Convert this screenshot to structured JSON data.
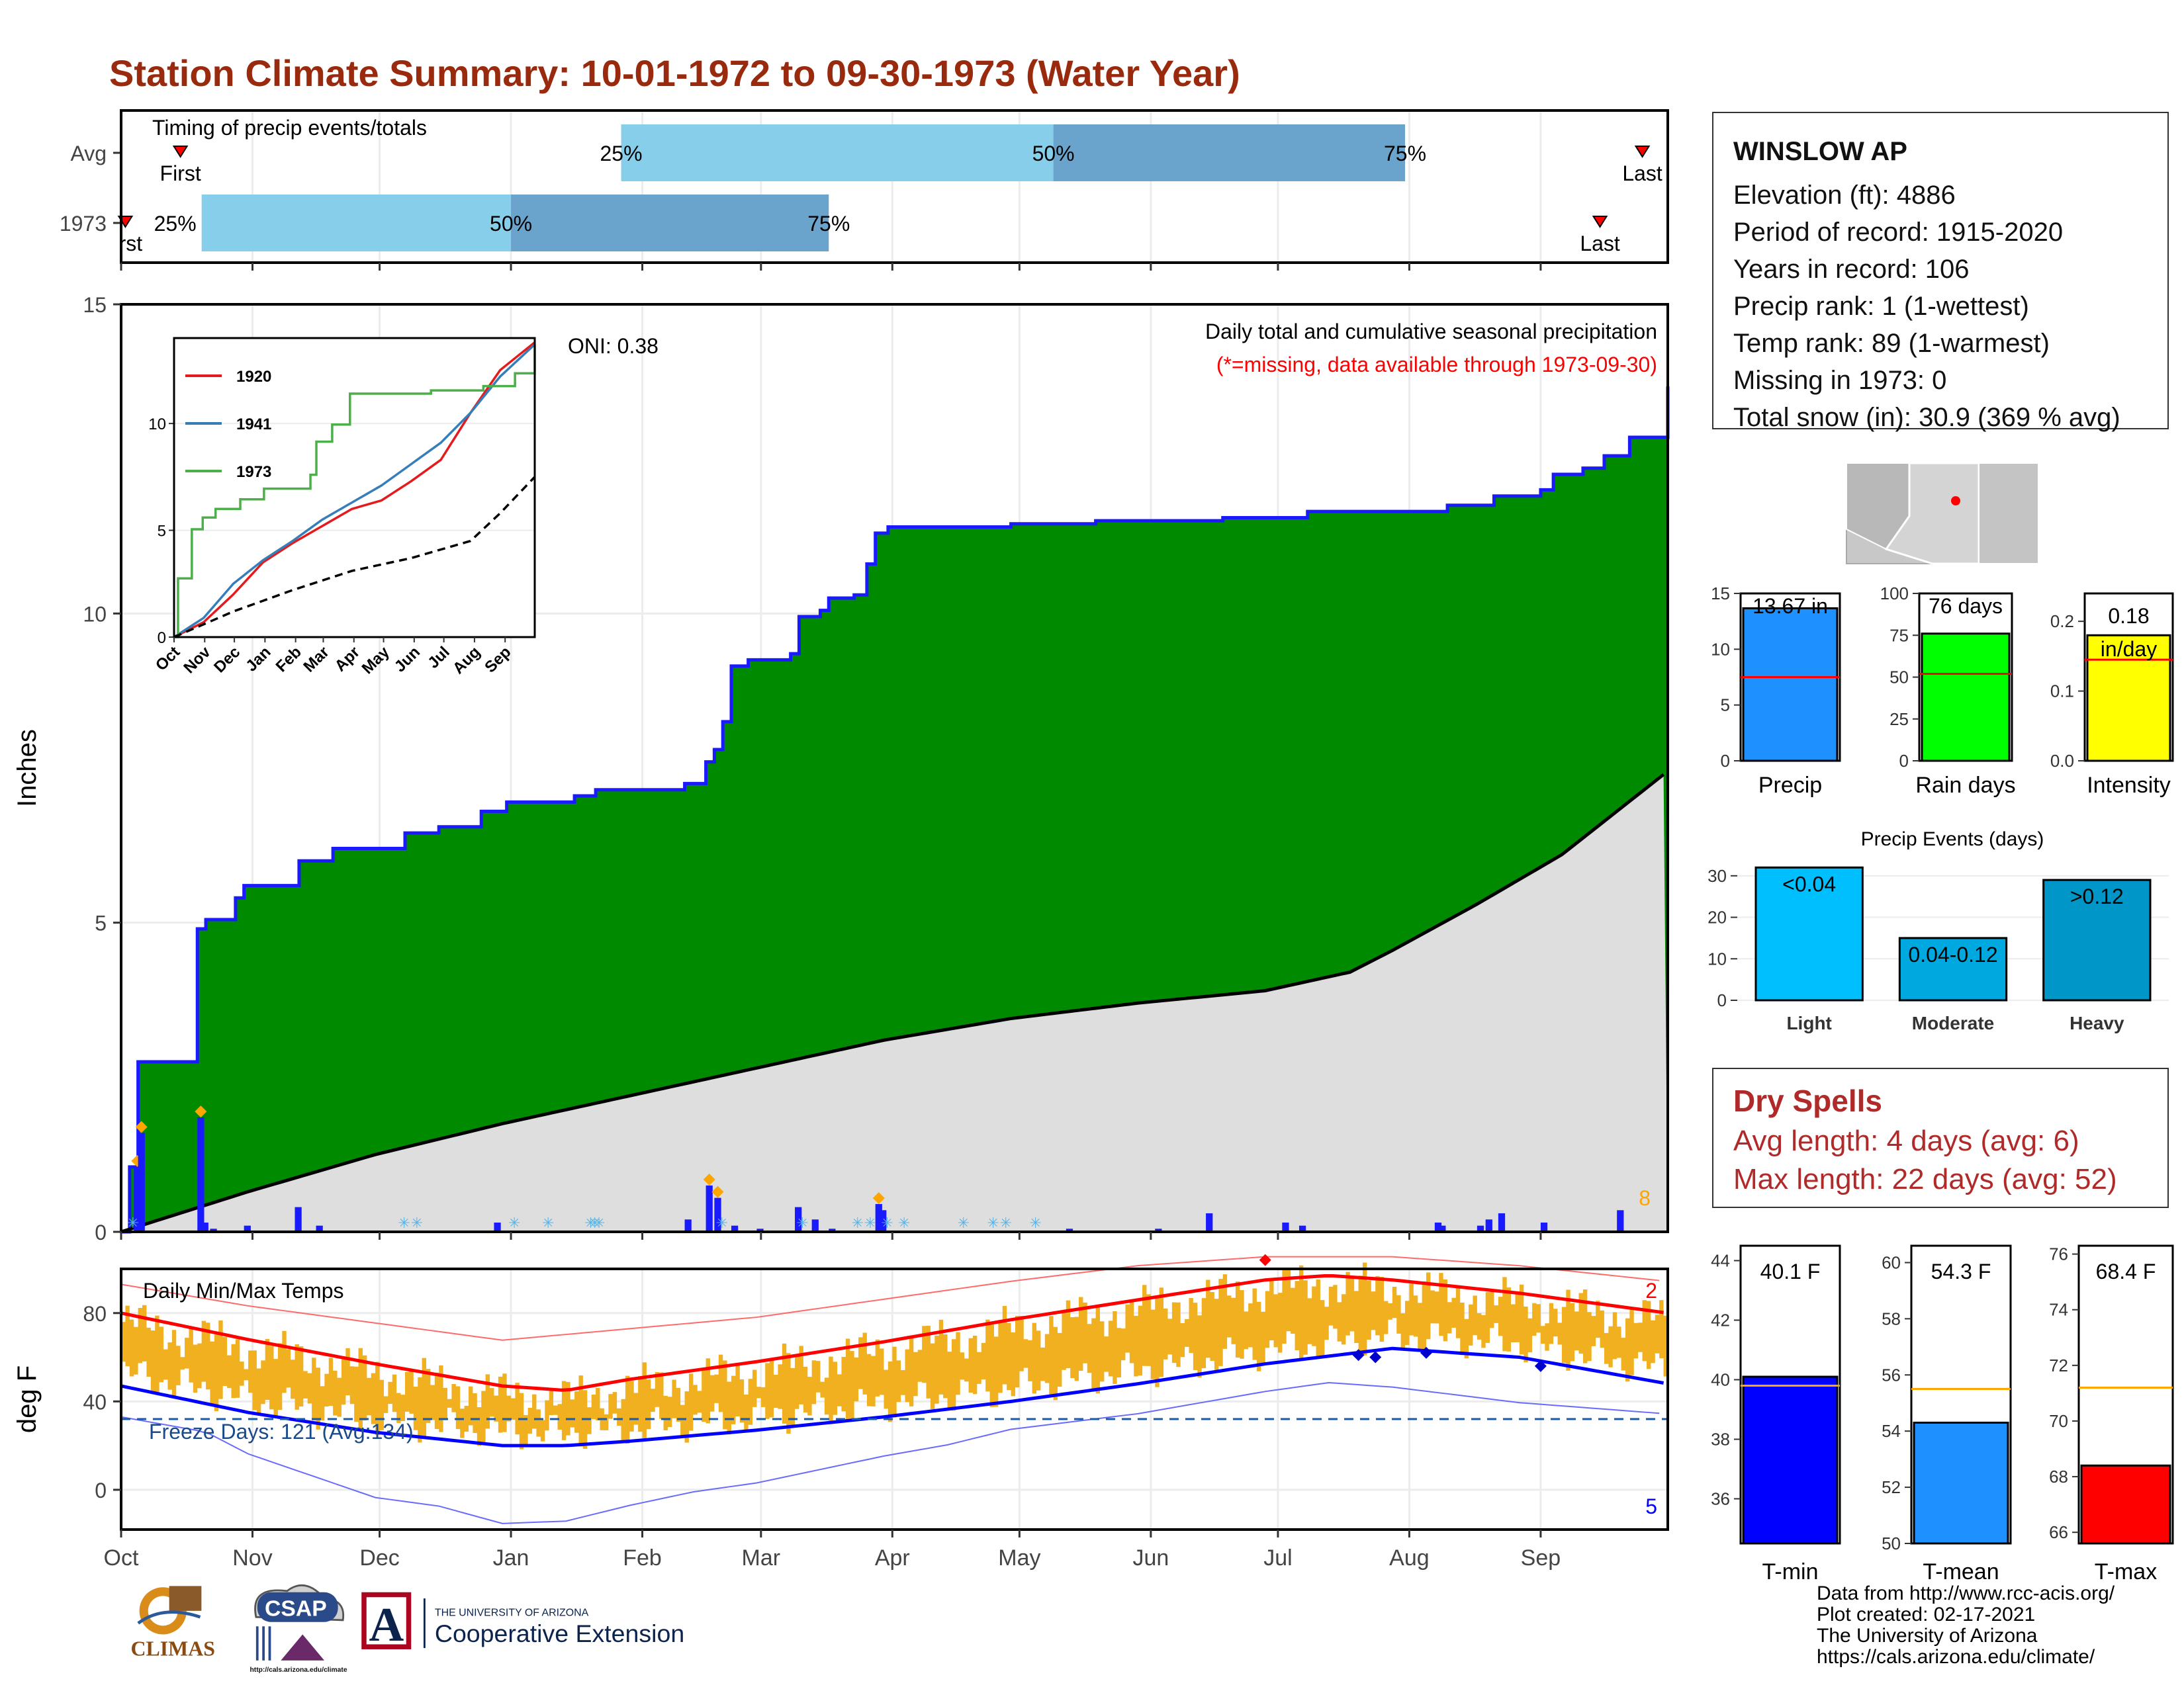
{
  "title": "Station Climate Summary: 10-01-1972 to 09-30-1973 (Water Year)",
  "station": {
    "name": "WINSLOW AP",
    "lines": [
      "Elevation (ft): 4886",
      "Period of record: 1915-2020",
      "Years in record: 106",
      "Precip rank: 1 (1-wettest)",
      "Temp rank: 89 (1-warmest)",
      "Missing in 1973: 0",
      "Total snow (in): 30.9 (369 % avg)"
    ]
  },
  "dry_spells": {
    "title": "Dry Spells",
    "avg": "Avg length: 4 days (avg: 6)",
    "max": "Max length: 22 days (avg: 52)"
  },
  "footer": [
    "Data from http://www.rcc-acis.org/",
    "Plot created: 02-17-2021",
    "The University of Arizona",
    "https://cals.arizona.edu/climate/"
  ],
  "logos": {
    "climas": "CLIMAS",
    "csap": "CSAP",
    "csap_url": "http://cals.arizona.edu/climate",
    "ua_line1": "THE UNIVERSITY OF ARIZONA",
    "ua_line2": "Cooperative Extension",
    "ua_letter": "A"
  },
  "colors": {
    "title": "#9a2a0e",
    "green": "#008a00",
    "blue_line": "#1a1aff",
    "grey_fill": "#dedede",
    "orange": "#f0b020",
    "red": "#ff0000",
    "light_blue": "#87ceeb",
    "mid_blue": "#6aa3cc"
  },
  "chart_data": [
    {
      "id": "timing",
      "type": "bar",
      "title": "Timing of precip events/totals",
      "rows": [
        {
          "label": "Avg",
          "first": "Oct 15",
          "p25": "Jan 27",
          "p50": "May 9",
          "p75": "Jul 31",
          "last": "Sep 25"
        },
        {
          "label": "1973",
          "first": "Oct 2",
          "p25": "Oct 20",
          "p50": "Jan 1",
          "p75": "Mar 17",
          "last": "Sep 15"
        }
      ],
      "row_labels": [
        "Avg",
        "1973"
      ],
      "pct_labels": [
        "25%",
        "50%",
        "75%"
      ],
      "first_label": "First",
      "first_label_cut": "rst",
      "last_label": "Last"
    },
    {
      "id": "precip",
      "type": "area",
      "title": "Daily total and cumulative seasonal precipitation",
      "subtitle": "(*=missing, data available through 1973-09-30)",
      "oni": "ONI: 0.38",
      "ylabel": "Inches",
      "ylim": [
        0,
        15
      ],
      "yticks": [
        0,
        5,
        10,
        15
      ],
      "xticks": [
        "Oct",
        "Nov",
        "Dec",
        "Jan",
        "Feb",
        "Mar",
        "Apr",
        "May",
        "Jun",
        "Jul",
        "Aug",
        "Sep"
      ],
      "count_label": "8",
      "cumulative_1973": [
        [
          0,
          0
        ],
        [
          2,
          1.05
        ],
        [
          4,
          2.75
        ],
        [
          17,
          2.75
        ],
        [
          18,
          4.9
        ],
        [
          20,
          5.05
        ],
        [
          27,
          5.4
        ],
        [
          29,
          5.6
        ],
        [
          40,
          5.6
        ],
        [
          42,
          6.0
        ],
        [
          50,
          6.2
        ],
        [
          66,
          6.2
        ],
        [
          67,
          6.45
        ],
        [
          75,
          6.55
        ],
        [
          85,
          6.8
        ],
        [
          91,
          6.95
        ],
        [
          107,
          7.05
        ],
        [
          112,
          7.15
        ],
        [
          133,
          7.25
        ],
        [
          138,
          7.6
        ],
        [
          140,
          7.8
        ],
        [
          142,
          8.25
        ],
        [
          144,
          9.15
        ],
        [
          148,
          9.25
        ],
        [
          158,
          9.35
        ],
        [
          160,
          9.95
        ],
        [
          165,
          10.05
        ],
        [
          167,
          10.25
        ],
        [
          173,
          10.3
        ],
        [
          176,
          10.8
        ],
        [
          178,
          11.3
        ],
        [
          181,
          11.4
        ],
        [
          210,
          11.45
        ],
        [
          230,
          11.5
        ],
        [
          260,
          11.55
        ],
        [
          280,
          11.65
        ],
        [
          306,
          11.65
        ],
        [
          313,
          11.75
        ],
        [
          324,
          11.9
        ],
        [
          335,
          12.0
        ],
        [
          338,
          12.25
        ],
        [
          345,
          12.35
        ],
        [
          350,
          12.55
        ],
        [
          356,
          12.85
        ],
        [
          365,
          13.67
        ]
      ],
      "avg_cumulative": [
        [
          0,
          0
        ],
        [
          30,
          0.65
        ],
        [
          60,
          1.25
        ],
        [
          90,
          1.75
        ],
        [
          120,
          2.2
        ],
        [
          150,
          2.65
        ],
        [
          180,
          3.1
        ],
        [
          210,
          3.45
        ],
        [
          240,
          3.7
        ],
        [
          270,
          3.9
        ],
        [
          290,
          4.2
        ],
        [
          300,
          4.55
        ],
        [
          320,
          5.3
        ],
        [
          340,
          6.1
        ],
        [
          365,
          7.45
        ]
      ],
      "daily_bars": [
        [
          3,
          1.05
        ],
        [
          4,
          1.6
        ],
        [
          18,
          1.85
        ],
        [
          19,
          0.15
        ],
        [
          21,
          0.05
        ],
        [
          29,
          0.1
        ],
        [
          41,
          0.4
        ],
        [
          46,
          0.1
        ],
        [
          88,
          0.15
        ],
        [
          133,
          0.2
        ],
        [
          138,
          0.75
        ],
        [
          140,
          0.55
        ],
        [
          144,
          0.1
        ],
        [
          150,
          0.05
        ],
        [
          159,
          0.4
        ],
        [
          163,
          0.2
        ],
        [
          167,
          0.05
        ],
        [
          178,
          0.45
        ],
        [
          179,
          0.35
        ],
        [
          223,
          0.05
        ],
        [
          244,
          0.05
        ],
        [
          256,
          0.3
        ],
        [
          274,
          0.15
        ],
        [
          278,
          0.1
        ],
        [
          310,
          0.15
        ],
        [
          311,
          0.1
        ],
        [
          320,
          0.1
        ],
        [
          322,
          0.2
        ],
        [
          325,
          0.3
        ],
        [
          335,
          0.15
        ],
        [
          353,
          0.35
        ]
      ],
      "snow_days": [
        2,
        66,
        69,
        92,
        100,
        110,
        111,
        112,
        141,
        160,
        173,
        176,
        180,
        184,
        198,
        205,
        208,
        215
      ],
      "inset": {
        "years": [
          "1920",
          "1941",
          "1973"
        ],
        "colors": [
          "#e41a1c",
          "#377eb8",
          "#4daf4a"
        ],
        "yticks": [
          0,
          5,
          10
        ],
        "xticks": [
          "Oct",
          "Nov",
          "Dec",
          "Jan",
          "Feb",
          "Mar",
          "Apr",
          "May",
          "Jun",
          "Jul",
          "Aug",
          "Sep"
        ],
        "ylim": [
          0,
          14
        ],
        "series": [
          {
            "name": "1920",
            "points": [
              [
                0,
                0
              ],
              [
                30,
                0.7
              ],
              [
                60,
                2
              ],
              [
                90,
                3.5
              ],
              [
                120,
                4.4
              ],
              [
                150,
                5.2
              ],
              [
                180,
                6
              ],
              [
                210,
                6.4
              ],
              [
                240,
                7.3
              ],
              [
                270,
                8.3
              ],
              [
                300,
                10.5
              ],
              [
                330,
                12.5
              ],
              [
                365,
                13.8
              ]
            ]
          },
          {
            "name": "1941",
            "points": [
              [
                0,
                0
              ],
              [
                30,
                0.9
              ],
              [
                60,
                2.5
              ],
              [
                90,
                3.6
              ],
              [
                120,
                4.5
              ],
              [
                150,
                5.5
              ],
              [
                180,
                6.3
              ],
              [
                210,
                7.1
              ],
              [
                240,
                8.1
              ],
              [
                270,
                9.1
              ],
              [
                300,
                10.5
              ],
              [
                330,
                12.2
              ],
              [
                365,
                13.7
              ]
            ]
          },
          {
            "name": "1973",
            "points": [
              [
                0,
                0
              ],
              [
                4,
                2.75
              ],
              [
                18,
                5.05
              ],
              [
                29,
                5.6
              ],
              [
                42,
                6.0
              ],
              [
                67,
                6.45
              ],
              [
                91,
                6.95
              ],
              [
                138,
                7.6
              ],
              [
                144,
                9.15
              ],
              [
                160,
                9.95
              ],
              [
                178,
                11.4
              ],
              [
                260,
                11.55
              ],
              [
                313,
                11.75
              ],
              [
                345,
                12.35
              ],
              [
                365,
                13.67
              ]
            ]
          },
          {
            "name": "avg",
            "points": [
              [
                0,
                0
              ],
              [
                60,
                1.2
              ],
              [
                120,
                2.2
              ],
              [
                180,
                3.1
              ],
              [
                240,
                3.7
              ],
              [
                300,
                4.5
              ],
              [
                330,
                5.8
              ],
              [
                365,
                7.5
              ]
            ]
          }
        ]
      }
    },
    {
      "id": "temps",
      "type": "line",
      "title": "Daily Min/Max Temps",
      "ylabel": "deg F",
      "yticks": [
        0,
        40,
        80
      ],
      "ylim": [
        -18,
        100
      ],
      "xticks": [
        "Oct",
        "Nov",
        "Dec",
        "Jan",
        "Feb",
        "Mar",
        "Apr",
        "May",
        "Jun",
        "Jul",
        "Aug",
        "Sep"
      ],
      "freeze_line": 32,
      "freeze_label": "Freeze Days: 121 (Avg:134)",
      "record_high_count": "2",
      "record_low_count": "5",
      "avg_max": [
        [
          0,
          80
        ],
        [
          30,
          68
        ],
        [
          60,
          57
        ],
        [
          90,
          47
        ],
        [
          105,
          45
        ],
        [
          120,
          50
        ],
        [
          150,
          58
        ],
        [
          180,
          67
        ],
        [
          210,
          77
        ],
        [
          240,
          86
        ],
        [
          270,
          95
        ],
        [
          285,
          97
        ],
        [
          300,
          95
        ],
        [
          330,
          89
        ],
        [
          365,
          80
        ]
      ],
      "avg_min": [
        [
          0,
          47
        ],
        [
          30,
          35
        ],
        [
          60,
          26
        ],
        [
          90,
          20
        ],
        [
          105,
          20
        ],
        [
          120,
          22
        ],
        [
          150,
          27
        ],
        [
          180,
          33
        ],
        [
          210,
          40
        ],
        [
          240,
          48
        ],
        [
          270,
          57
        ],
        [
          300,
          64
        ],
        [
          330,
          60
        ],
        [
          365,
          48
        ]
      ],
      "rec_max": [
        [
          0,
          93
        ],
        [
          30,
          83
        ],
        [
          60,
          75
        ],
        [
          90,
          67
        ],
        [
          120,
          72
        ],
        [
          150,
          77
        ],
        [
          180,
          85
        ],
        [
          210,
          93
        ],
        [
          240,
          100
        ],
        [
          270,
          104
        ],
        [
          300,
          104
        ],
        [
          330,
          100
        ],
        [
          365,
          93
        ]
      ],
      "rec_min": [
        [
          0,
          33
        ],
        [
          20,
          26
        ],
        [
          30,
          16
        ],
        [
          45,
          6
        ],
        [
          60,
          -4
        ],
        [
          75,
          -8
        ],
        [
          90,
          -16
        ],
        [
          105,
          -15
        ],
        [
          120,
          -8
        ],
        [
          135,
          -2
        ],
        [
          150,
          2
        ],
        [
          165,
          8
        ],
        [
          180,
          14
        ],
        [
          195,
          19
        ],
        [
          210,
          26
        ],
        [
          240,
          33
        ],
        [
          270,
          43
        ],
        [
          285,
          47
        ],
        [
          300,
          45
        ],
        [
          330,
          38
        ],
        [
          365,
          33
        ]
      ]
    },
    {
      "id": "totals",
      "type": "bar",
      "panels": [
        {
          "label": "Precip",
          "value": 13.67,
          "text": "13.67 in",
          "avg": 7.5,
          "ylim": [
            0,
            15
          ],
          "yticks": [
            0,
            5,
            10,
            15
          ],
          "color": "#1e90ff"
        },
        {
          "label": "Rain days",
          "value": 76,
          "text": "76 days",
          "avg": 52,
          "ylim": [
            0,
            100
          ],
          "yticks": [
            0,
            25,
            50,
            75,
            100
          ],
          "color": "#00ff00"
        },
        {
          "label": "Intensity",
          "value": 0.18,
          "text": "0.18 in/day",
          "text_lines": [
            "0.18",
            "in/day"
          ],
          "avg": 0.145,
          "ylim": [
            0,
            0.24
          ],
          "yticks": [
            0.0,
            0.1,
            0.2
          ],
          "ytick_labels": [
            "0.0",
            "0.1",
            "0.2"
          ],
          "color": "#ffff00"
        }
      ]
    },
    {
      "id": "events",
      "type": "bar",
      "title": "Precip Events (days)",
      "categories": [
        "Light",
        "Moderate",
        "Heavy"
      ],
      "values": [
        32,
        15,
        29
      ],
      "labels": [
        "<0.04",
        "0.04-0.12",
        ">0.12"
      ],
      "ylim": [
        0,
        33
      ],
      "yticks": [
        0,
        10,
        20,
        30
      ],
      "colors": [
        "#00bfff",
        "#00a8e0",
        "#0096c8"
      ]
    },
    {
      "id": "temp_means",
      "type": "bar",
      "panels": [
        {
          "label": "T-min",
          "value": 40.1,
          "text": "40.1 F",
          "avg": 39.8,
          "ylim": [
            34.5,
            44.5
          ],
          "yticks": [
            36,
            38,
            40,
            42,
            44
          ],
          "color": "#0000ff"
        },
        {
          "label": "T-mean",
          "value": 54.3,
          "text": "54.3 F",
          "avg": 55.5,
          "ylim": [
            50,
            60.6
          ],
          "yticks": [
            50,
            52,
            54,
            56,
            58,
            60
          ],
          "color": "#1e90ff"
        },
        {
          "label": "T-max",
          "value": 68.4,
          "text": "68.4 F",
          "avg": 71.2,
          "ylim": [
            65.6,
            76.3
          ],
          "yticks": [
            66,
            68,
            70,
            72,
            74,
            76
          ],
          "color": "#ff0000"
        }
      ]
    }
  ]
}
